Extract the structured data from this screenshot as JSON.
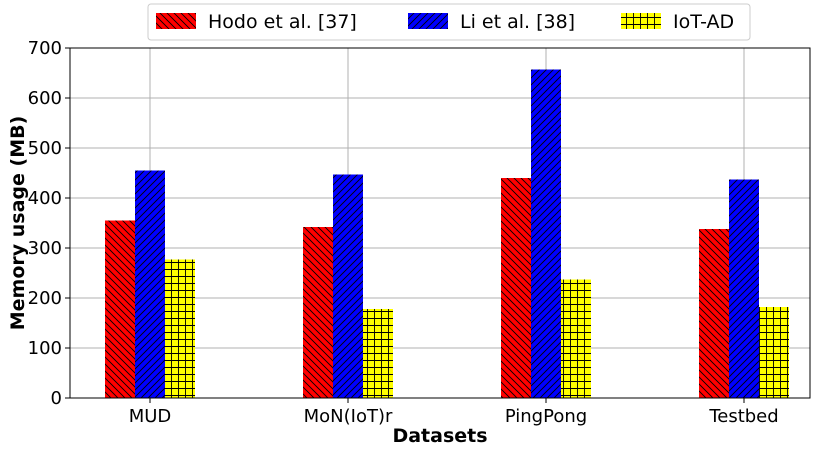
{
  "chart_data": {
    "type": "bar",
    "title": "",
    "xlabel": "Datasets",
    "ylabel": "Memory usage (MB)",
    "ylim": [
      0,
      700
    ],
    "yticks": [
      0,
      100,
      200,
      300,
      400,
      500,
      600,
      700
    ],
    "grid": true,
    "legend_position": "top",
    "categories": [
      "MUD",
      "MoN(IoT)r",
      "PingPong",
      "Testbed"
    ],
    "series": [
      {
        "name": "Hodo et al. [37]",
        "color": "#ff0000",
        "hatch": "back-diagonal",
        "values": [
          355,
          342,
          440,
          338
        ]
      },
      {
        "name": "Li et al. [38]",
        "color": "#0000ff",
        "hatch": "forward-diagonal",
        "values": [
          455,
          447,
          657,
          437
        ]
      },
      {
        "name": "IoT-AD",
        "color": "#ffff00",
        "hatch": "grid",
        "values": [
          277,
          178,
          237,
          182
        ]
      }
    ]
  }
}
